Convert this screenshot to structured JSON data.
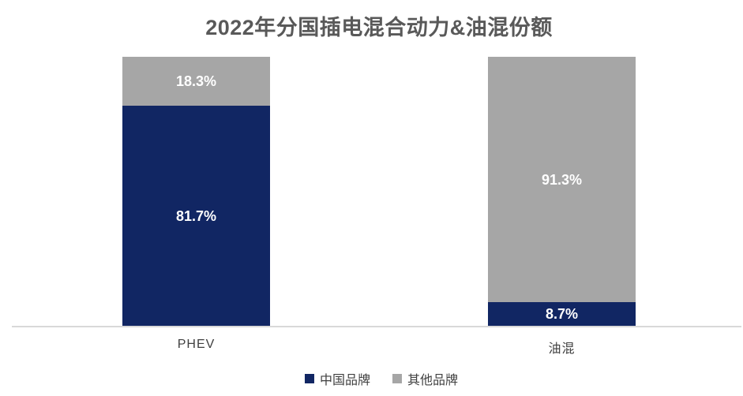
{
  "chart_data": {
    "type": "bar",
    "stacked": true,
    "title": "2022年分国插电混合动力&油混份额",
    "categories": [
      "PHEV",
      "油混"
    ],
    "series": [
      {
        "name": "中国品牌",
        "color": "#112663",
        "values": [
          81.7,
          8.7
        ],
        "labels": [
          "81.7%",
          "8.7%"
        ]
      },
      {
        "name": "其他品牌",
        "color": "#a6a6a6",
        "values": [
          18.3,
          91.3
        ],
        "labels": [
          "18.3%",
          "91.3%"
        ]
      }
    ],
    "ylim": [
      0,
      100
    ],
    "grid": false,
    "legend_position": "bottom",
    "value_label_color": "#ffffff",
    "title_color": "#595959",
    "axis_label_color": "#404040",
    "axis_line_color": "#d9d9d9"
  }
}
